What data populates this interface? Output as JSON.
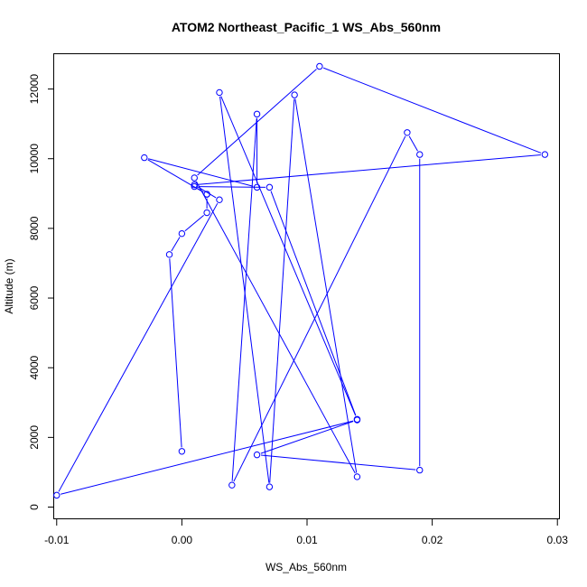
{
  "chart_data": {
    "type": "line",
    "title": "ATOM2 Northeast_Pacific_1 WS_Abs_560nm",
    "xlabel": "WS_Abs_560nm",
    "ylabel": "Altitude (m)",
    "xlim": [
      -0.0102,
      0.0302
    ],
    "ylim": [
      -350,
      13000
    ],
    "xticks": [
      -0.01,
      0.0,
      0.01,
      0.02,
      0.03
    ],
    "xtick_labels": [
      "-0.01",
      "0.00",
      "0.01",
      "0.02",
      "0.03"
    ],
    "yticks": [
      0,
      2000,
      4000,
      6000,
      8000,
      10000,
      12000
    ],
    "ytick_labels": [
      "0",
      "2000",
      "4000",
      "6000",
      "8000",
      "10000",
      "12000"
    ],
    "grid": false,
    "color": "#0000ff",
    "series": [
      {
        "x": [
          0.0,
          -0.001,
          0.0,
          0.002,
          0.002,
          0.001,
          0.007,
          0.014,
          0.003,
          0.007,
          0.009,
          0.014,
          0.001,
          0.011,
          0.029,
          0.001,
          0.003,
          -0.01,
          0.014,
          0.006,
          0.019,
          0.019,
          0.018,
          0.004,
          0.006,
          0.006,
          -0.003,
          0.002
        ],
        "y": [
          1600,
          7250,
          7850,
          8450,
          8980,
          9200,
          9180,
          2520,
          11900,
          580,
          11830,
          870,
          9450,
          12650,
          10120,
          9250,
          8820,
          340,
          2500,
          1500,
          1060,
          10120,
          10750,
          630,
          11280,
          9180,
          10030,
          8980
        ]
      }
    ]
  }
}
